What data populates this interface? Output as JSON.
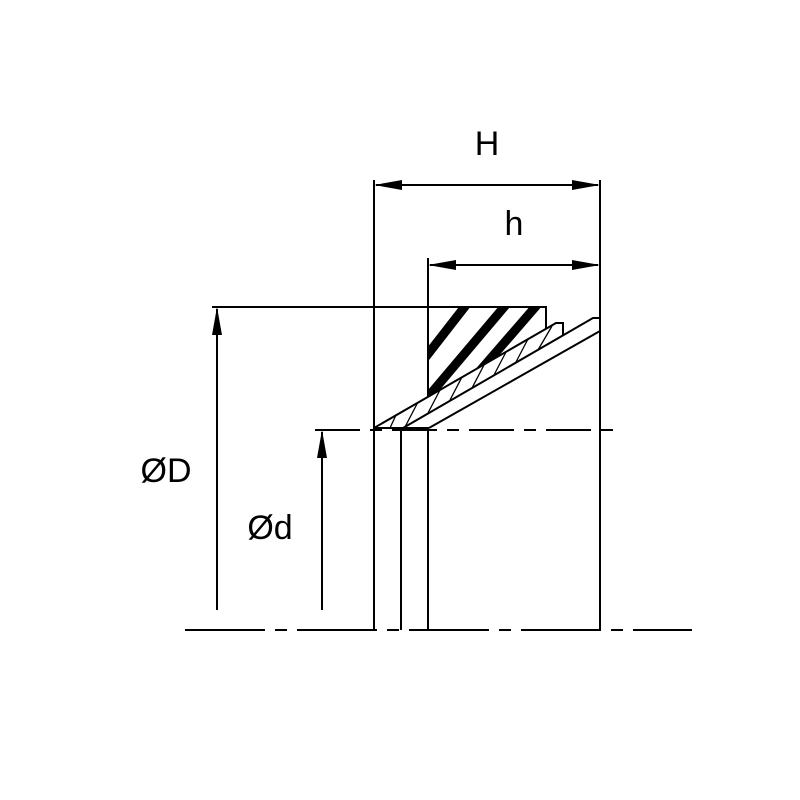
{
  "labels": {
    "H": "H",
    "h": "h",
    "D": "ØD",
    "d": "Ød"
  },
  "colors": {
    "line": "#000000",
    "background": "#ffffff"
  }
}
